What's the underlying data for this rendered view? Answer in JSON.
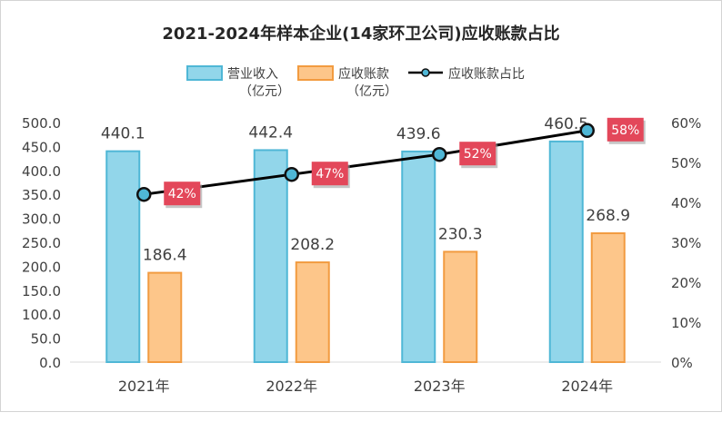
{
  "chart_data": {
    "type": "bar",
    "title": "2021-2024年样本企业(14家环卫公司)应收账款占比",
    "categories": [
      "2021年",
      "2022年",
      "2023年",
      "2024年"
    ],
    "series": [
      {
        "name": "营业收入（亿元）",
        "name_line1": "营业收入",
        "name_line2": "（亿元）",
        "type": "bar",
        "axis": "left",
        "values": [
          440.1,
          442.4,
          439.6,
          460.5
        ],
        "labels": [
          "440.1",
          "442.4",
          "439.6",
          "460.5"
        ],
        "color": "#92d6ea",
        "stroke": "#4fb7d6"
      },
      {
        "name": "应收账款（亿元）",
        "name_line1": "应收账款",
        "name_line2": "（亿元）",
        "type": "bar",
        "axis": "left",
        "values": [
          186.4,
          208.2,
          230.3,
          268.9
        ],
        "labels": [
          "186.4",
          "208.2",
          "230.3",
          "268.9"
        ],
        "color": "#fdc68a",
        "stroke": "#f29b40"
      },
      {
        "name": "应收账款占比",
        "name_line1": "应收账款占比",
        "type": "line",
        "axis": "right",
        "values": [
          42,
          47,
          52,
          58
        ],
        "labels": [
          "42%",
          "47%",
          "52%",
          "58%"
        ],
        "color": "#000000",
        "marker_color": "#4fb7d6",
        "label_bg": "#e3475a"
      }
    ],
    "y_left": {
      "ylim": [
        0,
        500
      ],
      "ticks": [
        "0.0",
        "50.0",
        "100.0",
        "150.0",
        "200.0",
        "250.0",
        "300.0",
        "350.0",
        "400.0",
        "450.0",
        "500.0"
      ]
    },
    "y_right": {
      "ylim": [
        0,
        60
      ],
      "ticks": [
        "0%",
        "10%",
        "20%",
        "30%",
        "40%",
        "50%",
        "60%"
      ]
    },
    "grid": false,
    "legend_position": "top"
  }
}
